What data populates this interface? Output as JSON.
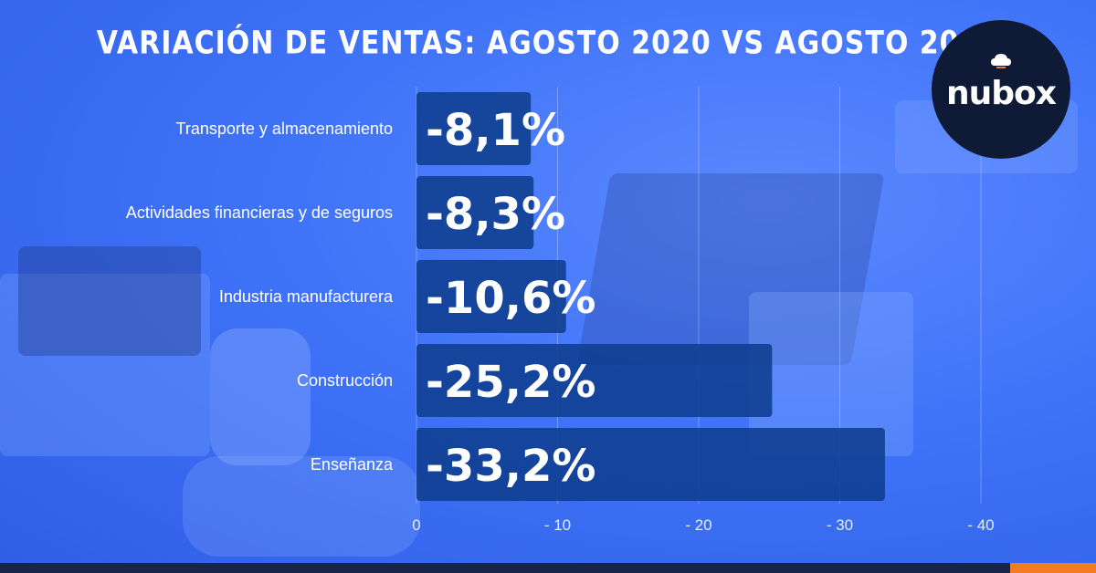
{
  "title": "VARIACIÓN DE VENTAS: AGOSTO 2020 VS AGOSTO 2019",
  "logo": {
    "text": "nubox",
    "icon": "cloud-icon"
  },
  "colors": {
    "background": "#3f73f8",
    "bar": "#0f3d8e",
    "text": "#ffffff",
    "logo_bg": "#0e1a36",
    "footer": "#17254a",
    "footer_accent": "#f47b20"
  },
  "chart_data": {
    "type": "bar",
    "orientation": "horizontal",
    "title": "VARIACIÓN DE VENTAS: AGOSTO 2020 VS AGOSTO 2019",
    "categories": [
      "Transporte y almacenamiento",
      "Actividades financieras y de seguros",
      "Industria manufacturera",
      "Construcción",
      "Enseñanza"
    ],
    "values": [
      -8.1,
      -8.3,
      -10.6,
      -25.2,
      -33.2
    ],
    "data_labels": [
      "-8,1%",
      "-8,3%",
      "-10,6%",
      "-25,2%",
      "-33,2%"
    ],
    "x_ticks": [
      "0",
      "- 10",
      "- 20",
      "- 30",
      "- 40"
    ],
    "x_tick_values": [
      0,
      -10,
      -20,
      -30,
      -40
    ],
    "xlim": [
      0,
      -40
    ],
    "grid": true,
    "legend": "none"
  }
}
